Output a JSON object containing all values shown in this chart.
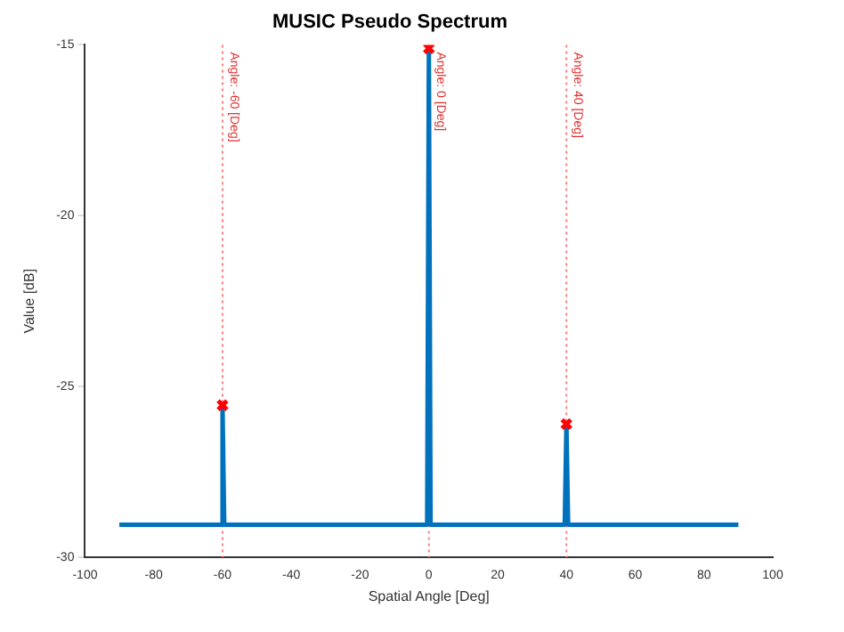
{
  "chart_data": {
    "type": "line",
    "title": "MUSIC Pseudo Spectrum",
    "xlabel": "Spatial Angle [Deg]",
    "ylabel": "Value [dB]",
    "xlim": [
      -100,
      100
    ],
    "xticks": [
      -100,
      -80,
      -60,
      -40,
      -20,
      0,
      20,
      40,
      60,
      80,
      100
    ],
    "ylim": [
      -30,
      -15
    ],
    "yticks": [
      -30,
      -25,
      -20,
      -15
    ],
    "grid": false,
    "legend": false,
    "series": [
      {
        "type": "line",
        "color": "#0072bd",
        "marker": "none",
        "line_style": "solid",
        "x": [
          -90,
          -60.5,
          -60,
          -59.5,
          -0.5,
          0,
          0.5,
          39.5,
          40,
          40.5,
          90
        ],
        "values": [
          -29.05,
          -29.05,
          -25.55,
          -29.05,
          -29.05,
          -15.1,
          -29.05,
          -29.05,
          -26.1,
          -29.05,
          -29.05
        ]
      },
      {
        "type": "scatter",
        "color": "#ff0000",
        "marker": "cross",
        "x": [
          -60,
          0,
          40
        ],
        "values": [
          -25.55,
          -15.1,
          -26.1
        ]
      }
    ],
    "ref_lines": [
      {
        "axis": "x",
        "value": -60,
        "label": "Angle: -60 [Deg]",
        "color": "#ff8080",
        "line_style": "dotted"
      },
      {
        "axis": "x",
        "value": 0,
        "label": "Angle: 0 [Deg]",
        "color": "#ff8080",
        "line_style": "dotted"
      },
      {
        "axis": "x",
        "value": 40,
        "label": "Angle: 40 [Deg]",
        "color": "#ff8080",
        "line_style": "dotted"
      }
    ]
  }
}
